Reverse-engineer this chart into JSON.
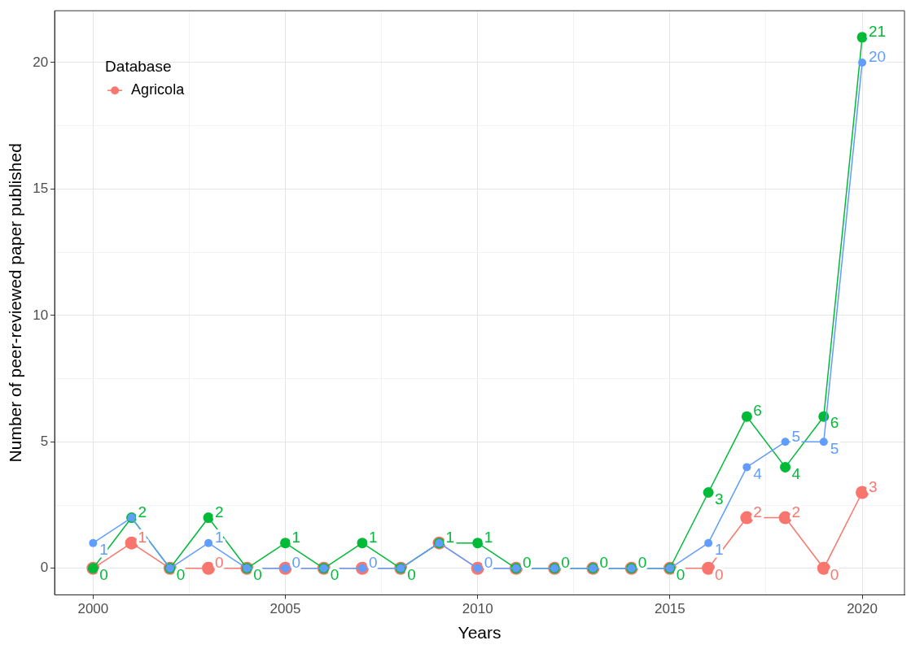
{
  "chart_data": {
    "type": "line",
    "xlabel": "Years",
    "ylabel": "Number of peer-reviewed paper published",
    "legend_title": "Database",
    "x": [
      2000,
      2001,
      2002,
      2003,
      2004,
      2005,
      2006,
      2007,
      2008,
      2009,
      2010,
      2011,
      2012,
      2013,
      2014,
      2015,
      2016,
      2017,
      2018,
      2019,
      2020
    ],
    "series": [
      {
        "name": "Agricola",
        "color": "#f8766d",
        "values": [
          0,
          1,
          0,
          0,
          0,
          0,
          0,
          0,
          0,
          1,
          0,
          0,
          0,
          0,
          0,
          0,
          0,
          2,
          2,
          0,
          3
        ],
        "value_labels": [
          null,
          "1",
          null,
          "0",
          null,
          null,
          null,
          null,
          null,
          null,
          null,
          null,
          null,
          null,
          null,
          null,
          "0",
          "2",
          "2",
          "0",
          "3"
        ]
      },
      {
        "color": "#00ba38",
        "values": [
          0,
          2,
          0,
          2,
          0,
          1,
          0,
          1,
          0,
          1,
          1,
          0,
          0,
          0,
          0,
          0,
          3,
          6,
          4,
          6,
          21
        ],
        "value_labels": [
          "0",
          "2",
          "0",
          "2",
          "0",
          "1",
          "0",
          "1",
          "0",
          "1",
          "1",
          "0",
          "0",
          "0",
          "0",
          "0",
          "3",
          "6",
          "4",
          "6",
          "21"
        ]
      },
      {
        "color": "#619cff",
        "values": [
          1,
          2,
          0,
          1,
          0,
          0,
          0,
          0,
          0,
          1,
          0,
          0,
          0,
          0,
          0,
          0,
          1,
          4,
          5,
          5,
          20
        ],
        "value_labels": [
          "1",
          null,
          null,
          "1",
          null,
          "0",
          null,
          "0",
          null,
          null,
          "0",
          null,
          null,
          null,
          null,
          null,
          "1",
          "4",
          "5",
          "5",
          "20"
        ]
      }
    ],
    "xlim": [
      1999,
      2021.1
    ],
    "xticks": [
      2000,
      {
        "value": 2002.5,
        "label": null
      },
      2005,
      {
        "value": 2007.5,
        "label": null
      },
      2010,
      {
        "value": 2012.5,
        "label": null
      },
      2015,
      {
        "value": 2017.5,
        "label": null
      },
      2020
    ],
    "ylim": [
      -1.05,
      22.05
    ],
    "yticks": [
      0,
      {
        "value": 2.5,
        "label": null
      },
      5,
      {
        "value": 7.5,
        "label": null
      },
      10,
      {
        "value": 12.5,
        "label": null
      },
      15,
      {
        "value": 17.5,
        "label": null
      },
      20
    ],
    "grid": true,
    "legend": "top left",
    "marker": "circle",
    "line_style": "solid"
  }
}
